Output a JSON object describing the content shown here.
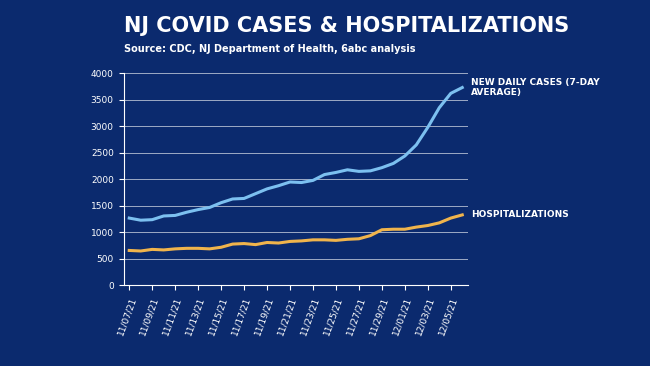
{
  "chart_data": {
    "type": "line",
    "title": "NJ COVID CASES & HOSPITALIZATIONS",
    "subtitle": "Source: CDC, NJ Department of Health, 6abc analysis",
    "categories": [
      "11/07/21",
      null,
      "11/09/21",
      null,
      "11/11/21",
      null,
      "11/13/21",
      null,
      "11/15/21",
      null,
      "11/17/21",
      null,
      "11/19/21",
      null,
      "11/21/21",
      null,
      "11/23/21",
      null,
      "11/25/21",
      null,
      "11/27/21",
      null,
      "11/29/21",
      null,
      "12/01/21",
      null,
      "12/03/21",
      null,
      "12/05/21",
      null
    ],
    "series": [
      {
        "name": "NEW DAILY CASES (7-DAY AVERAGE)",
        "color": "#7cc0f0",
        "values": [
          1270,
          1230,
          1240,
          1310,
          1320,
          1380,
          1430,
          1470,
          1560,
          1630,
          1640,
          1730,
          1820,
          1880,
          1950,
          1940,
          1980,
          2090,
          2130,
          2180,
          2150,
          2160,
          2220,
          2300,
          2440,
          2650,
          2980,
          3350,
          3620,
          3730
        ]
      },
      {
        "name": "HOSPITALIZATIONS",
        "color": "#f0b44c",
        "values": [
          660,
          650,
          680,
          670,
          690,
          700,
          700,
          690,
          720,
          780,
          790,
          770,
          810,
          800,
          830,
          840,
          860,
          860,
          850,
          870,
          880,
          940,
          1050,
          1060,
          1060,
          1100,
          1130,
          1180,
          1270,
          1330
        ]
      }
    ],
    "ylim": [
      0,
      4000
    ],
    "yticks": [
      0,
      500,
      1000,
      1500,
      2000,
      2500,
      3000,
      3500,
      4000
    ],
    "grid": true
  }
}
